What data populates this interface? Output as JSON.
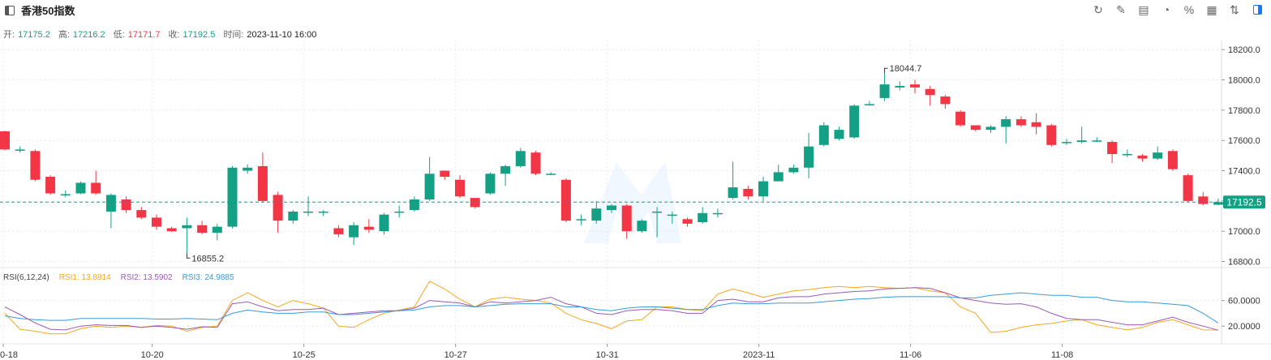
{
  "header": {
    "title": "香港50指数",
    "tools": [
      "refresh-icon",
      "draw-icon",
      "indicator-icon",
      "pie-icon",
      "percent-icon",
      "grid-icon",
      "sort-icon",
      "panel-icon"
    ]
  },
  "ohlc": {
    "open_label": "开:",
    "open": "17175.2",
    "high_label": "高:",
    "high": "17216.2",
    "low_label": "低:",
    "low": "17171.7",
    "close_label": "收:",
    "close": "17192.5",
    "time_label": "时间:",
    "time": "2023-11-10 16:00"
  },
  "rsi_legend": {
    "title": "RSI(6,12,24)",
    "rsi1": "RSI1: 13.8814",
    "rsi2": "RSI2: 13.5902",
    "rsi3": "RSI3: 24.9885"
  },
  "colors": {
    "up": "#13a085",
    "down": "#f23645",
    "rsi1": "#f5a623",
    "rsi2": "#9b59b6",
    "rsi3": "#3a9ad9"
  },
  "chart_data": {
    "type": "candlestick",
    "price_axis": {
      "ticks": [
        "18200.0",
        "18000.0",
        "17800.0",
        "17600.0",
        "17400.0",
        "17200.0",
        "17000.0",
        "16800.0"
      ],
      "ylim": [
        16760,
        18260
      ]
    },
    "last_price": "17192.5",
    "max_label": "18044.7",
    "min_label": "16855.2",
    "x_ticks": [
      "0-18",
      "10-20",
      "10-25",
      "10-27",
      "10-31",
      "2023-11",
      "11-06",
      "11-08"
    ],
    "rsi_axis": {
      "ticks": [
        "60.0000",
        "20.0000"
      ]
    },
    "candles": [
      [
        17660,
        17540,
        17665,
        17535
      ],
      [
        17540,
        17540,
        17560,
        17520
      ],
      [
        17530,
        17340,
        17540,
        17330
      ],
      [
        17360,
        17250,
        17370,
        17240
      ],
      [
        17245,
        17245,
        17270,
        17225
      ],
      [
        17250,
        17320,
        17330,
        17245
      ],
      [
        17320,
        17250,
        17400,
        17240
      ],
      [
        17130,
        17240,
        17250,
        17020
      ],
      [
        17210,
        17140,
        17230,
        17120
      ],
      [
        17140,
        17090,
        17160,
        17080
      ],
      [
        17090,
        17030,
        17110,
        17010
      ],
      [
        17020,
        17000,
        17030,
        16995
      ],
      [
        17020,
        17040,
        17090,
        16855
      ],
      [
        17040,
        16990,
        17070,
        16980
      ],
      [
        16990,
        17030,
        17050,
        16940
      ],
      [
        17030,
        17420,
        17430,
        17020
      ],
      [
        17400,
        17420,
        17440,
        17380
      ],
      [
        17430,
        17200,
        17520,
        17190
      ],
      [
        17240,
        17070,
        17260,
        16990
      ],
      [
        17070,
        17130,
        17140,
        17050
      ],
      [
        17130,
        17130,
        17230,
        17100
      ],
      [
        17130,
        17130,
        17140,
        17100
      ],
      [
        17020,
        16980,
        17040,
        16960
      ],
      [
        16960,
        17040,
        17060,
        16910
      ],
      [
        17030,
        17010,
        17080,
        16990
      ],
      [
        17000,
        17110,
        17120,
        16980
      ],
      [
        17130,
        17130,
        17170,
        17090
      ],
      [
        17140,
        17210,
        17230,
        17130
      ],
      [
        17210,
        17380,
        17490,
        17200
      ],
      [
        17400,
        17360,
        17400,
        17340
      ],
      [
        17340,
        17230,
        17370,
        17220
      ],
      [
        17220,
        17160,
        17220,
        17150
      ],
      [
        17250,
        17380,
        17390,
        17240
      ],
      [
        17380,
        17430,
        17440,
        17300
      ],
      [
        17430,
        17530,
        17550,
        17420
      ],
      [
        17520,
        17380,
        17530,
        17370
      ],
      [
        17380,
        17380,
        17390,
        17370
      ],
      [
        17340,
        17070,
        17350,
        17060
      ],
      [
        17080,
        17080,
        17110,
        17040
      ],
      [
        17070,
        17150,
        17200,
        17050
      ],
      [
        17140,
        17170,
        17180,
        17120
      ],
      [
        17170,
        17000,
        17180,
        16950
      ],
      [
        17000,
        17070,
        17080,
        16990
      ],
      [
        17130,
        17130,
        17160,
        16960
      ],
      [
        17110,
        17110,
        17130,
        17050
      ],
      [
        17080,
        17050,
        17090,
        17030
      ],
      [
        17060,
        17120,
        17160,
        17050
      ],
      [
        17120,
        17120,
        17150,
        17090
      ],
      [
        17220,
        17290,
        17460,
        17210
      ],
      [
        17280,
        17230,
        17300,
        17210
      ],
      [
        17230,
        17330,
        17360,
        17200
      ],
      [
        17330,
        17390,
        17440,
        17330
      ],
      [
        17390,
        17420,
        17440,
        17380
      ],
      [
        17420,
        17560,
        17650,
        17350
      ],
      [
        17570,
        17700,
        17720,
        17560
      ],
      [
        17610,
        17670,
        17690,
        17600
      ],
      [
        17620,
        17830,
        17840,
        17610
      ],
      [
        17840,
        17840,
        17860,
        17830
      ],
      [
        17880,
        17970,
        18044.7,
        17860
      ],
      [
        17950,
        17960,
        17990,
        17930
      ],
      [
        17970,
        17950,
        18000,
        17910
      ],
      [
        17940,
        17900,
        17960,
        17830
      ],
      [
        17890,
        17840,
        17900,
        17810
      ],
      [
        17790,
        17700,
        17800,
        17690
      ],
      [
        17700,
        17670,
        17700,
        17660
      ],
      [
        17670,
        17690,
        17700,
        17650
      ],
      [
        17690,
        17740,
        17760,
        17580
      ],
      [
        17740,
        17700,
        17760,
        17690
      ],
      [
        17720,
        17690,
        17780,
        17640
      ],
      [
        17700,
        17570,
        17710,
        17560
      ],
      [
        17590,
        17590,
        17610,
        17570
      ],
      [
        17590,
        17600,
        17690,
        17580
      ],
      [
        17600,
        17600,
        17620,
        17590
      ],
      [
        17590,
        17510,
        17600,
        17450
      ],
      [
        17510,
        17510,
        17540,
        17490
      ],
      [
        17500,
        17480,
        17510,
        17460
      ],
      [
        17480,
        17520,
        17560,
        17470
      ],
      [
        17530,
        17410,
        17540,
        17400
      ],
      [
        17370,
        17200,
        17380,
        17190
      ],
      [
        17230,
        17180,
        17260,
        17170
      ],
      [
        17175.2,
        17192.5,
        17216.2,
        17171.7
      ]
    ],
    "rsi1": [
      40,
      15,
      12,
      8,
      8,
      16,
      20,
      18,
      20,
      18,
      21,
      20,
      12,
      18,
      20,
      60,
      72,
      60,
      50,
      60,
      55,
      48,
      20,
      18,
      30,
      40,
      45,
      50,
      90,
      78,
      62,
      50,
      62,
      65,
      62,
      60,
      56,
      40,
      30,
      24,
      16,
      28,
      30,
      50,
      50,
      46,
      44,
      70,
      78,
      72,
      65,
      70,
      75,
      77,
      80,
      82,
      80,
      82,
      80,
      79,
      80,
      75,
      72,
      50,
      40,
      10,
      12,
      18,
      22,
      24,
      28,
      30,
      22,
      18,
      14,
      18,
      26,
      30,
      22,
      14,
      13.88
    ],
    "rsi2": [
      50,
      38,
      25,
      15,
      14,
      20,
      22,
      21,
      21,
      18,
      20,
      18,
      15,
      19,
      18,
      55,
      58,
      50,
      44,
      46,
      46,
      48,
      38,
      40,
      42,
      44,
      44,
      48,
      60,
      58,
      56,
      50,
      58,
      56,
      58,
      60,
      65,
      55,
      50,
      40,
      38,
      44,
      46,
      46,
      44,
      40,
      40,
      60,
      62,
      58,
      58,
      64,
      66,
      66,
      70,
      72,
      74,
      75,
      78,
      79,
      80,
      79,
      72,
      64,
      60,
      56,
      54,
      55,
      50,
      40,
      32,
      30,
      30,
      26,
      22,
      22,
      28,
      34,
      26,
      20,
      13.59
    ],
    "rsi3": [
      36,
      32,
      30,
      29,
      29,
      32,
      32,
      32,
      32,
      32,
      31,
      31,
      32,
      31,
      30,
      40,
      45,
      42,
      40,
      40,
      42,
      42,
      38,
      38,
      40,
      42,
      44,
      45,
      50,
      52,
      52,
      50,
      52,
      54,
      55,
      55,
      55,
      50,
      50,
      46,
      44,
      48,
      50,
      50,
      48,
      46,
      46,
      52,
      56,
      55,
      55,
      56,
      56,
      56,
      58,
      60,
      62,
      63,
      65,
      66,
      66,
      66,
      66,
      64,
      64,
      68,
      70,
      72,
      70,
      68,
      68,
      65,
      65,
      60,
      58,
      58,
      56,
      54,
      52,
      40,
      24.99
    ]
  }
}
